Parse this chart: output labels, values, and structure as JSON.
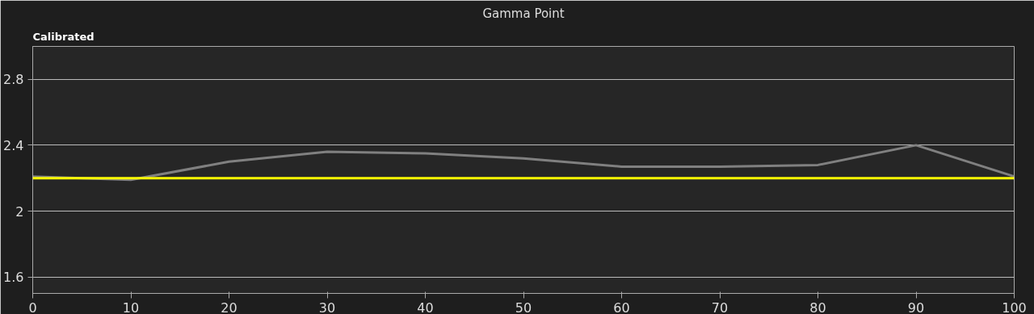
{
  "chart_data": {
    "type": "line",
    "title": "Gamma Point",
    "annotations": [
      "Calibrated"
    ],
    "x": [
      0,
      10,
      20,
      30,
      40,
      50,
      60,
      70,
      80,
      90,
      100
    ],
    "series": [
      {
        "color": "#808080",
        "values": [
          2.21,
          2.19,
          2.3,
          2.36,
          2.35,
          2.32,
          2.27,
          2.27,
          2.28,
          2.4,
          2.21
        ]
      }
    ],
    "ref_lines": [
      {
        "axis": "y",
        "value": 2.2,
        "color": "#ffff00"
      }
    ],
    "xlim": [
      0,
      100
    ],
    "xticks": [
      0,
      10,
      20,
      30,
      40,
      50,
      60,
      70,
      80,
      90,
      100
    ],
    "ylim": [
      1.5,
      3.0
    ],
    "yticks": [
      1.6,
      2,
      2.4,
      2.8
    ],
    "grid": "y"
  }
}
